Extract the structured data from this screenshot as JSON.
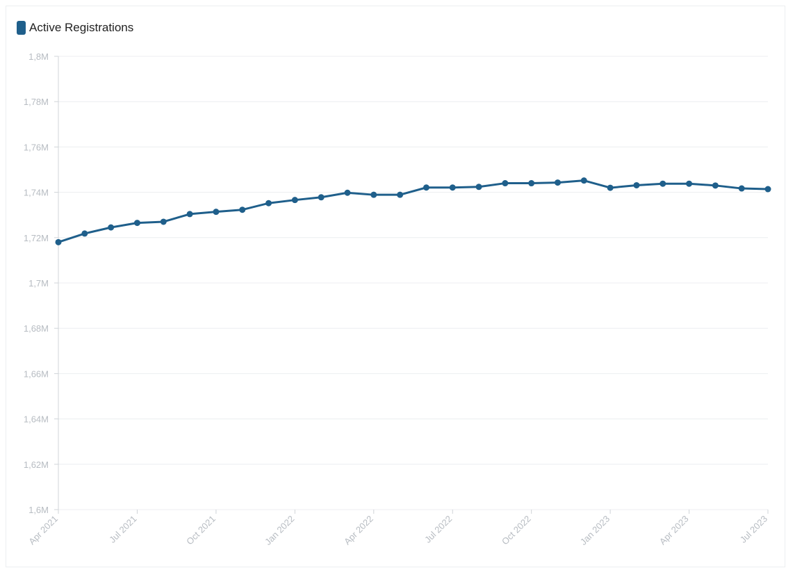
{
  "legend": {
    "label": "Active Registrations",
    "color": "#1f5f8b"
  },
  "chart_data": {
    "type": "line",
    "title": "",
    "xlabel": "",
    "ylabel": "",
    "x": [
      "2021-04",
      "2021-05",
      "2021-06",
      "2021-07",
      "2021-08",
      "2021-09",
      "2021-10",
      "2021-11",
      "2021-12",
      "2022-01",
      "2022-02",
      "2022-03",
      "2022-04",
      "2022-05",
      "2022-06",
      "2022-07",
      "2022-08",
      "2022-09",
      "2022-10",
      "2022-11",
      "2022-12",
      "2023-01",
      "2023-02",
      "2023-03",
      "2023-04",
      "2023-05",
      "2023-06",
      "2023-07"
    ],
    "series": [
      {
        "name": "Active Registrations",
        "color": "#1f5f8b",
        "values": [
          1718000,
          1721800,
          1724500,
          1726500,
          1727000,
          1730400,
          1731400,
          1732300,
          1735200,
          1736600,
          1737800,
          1739800,
          1738900,
          1738900,
          1742100,
          1742100,
          1742400,
          1744000,
          1744000,
          1744300,
          1745200,
          1742000,
          1743100,
          1743800,
          1743800,
          1743000,
          1741700,
          1741400
        ]
      }
    ],
    "x_ticks": [
      "Apr 2021",
      "Jul 2021",
      "Oct 2021",
      "Jan 2022",
      "Apr 2022",
      "Jul 2022",
      "Oct 2022",
      "Jan 2023",
      "Apr 2023",
      "Jul 2023"
    ],
    "y_ticks": [
      "1,6M",
      "1,62M",
      "1,64M",
      "1,66M",
      "1,68M",
      "1,7M",
      "1,72M",
      "1,74M",
      "1,76M",
      "1,78M",
      "1,8M"
    ],
    "ylim": [
      1600000,
      1800000
    ],
    "grid": true,
    "legend_position": "top-left"
  }
}
